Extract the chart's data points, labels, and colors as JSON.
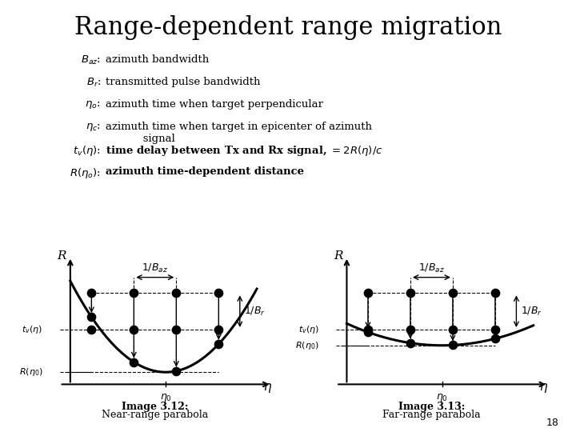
{
  "title": "Range-dependent range migration",
  "title_fontsize": 22,
  "bg_color": "#ffffff",
  "text_color": "#000000",
  "image312_label": "Image 3.12:",
  "image312_sub": "Near-range parabola",
  "image313_label": "Image 3.13:",
  "image313_sub": "Far-range parabola",
  "page_number": "18"
}
